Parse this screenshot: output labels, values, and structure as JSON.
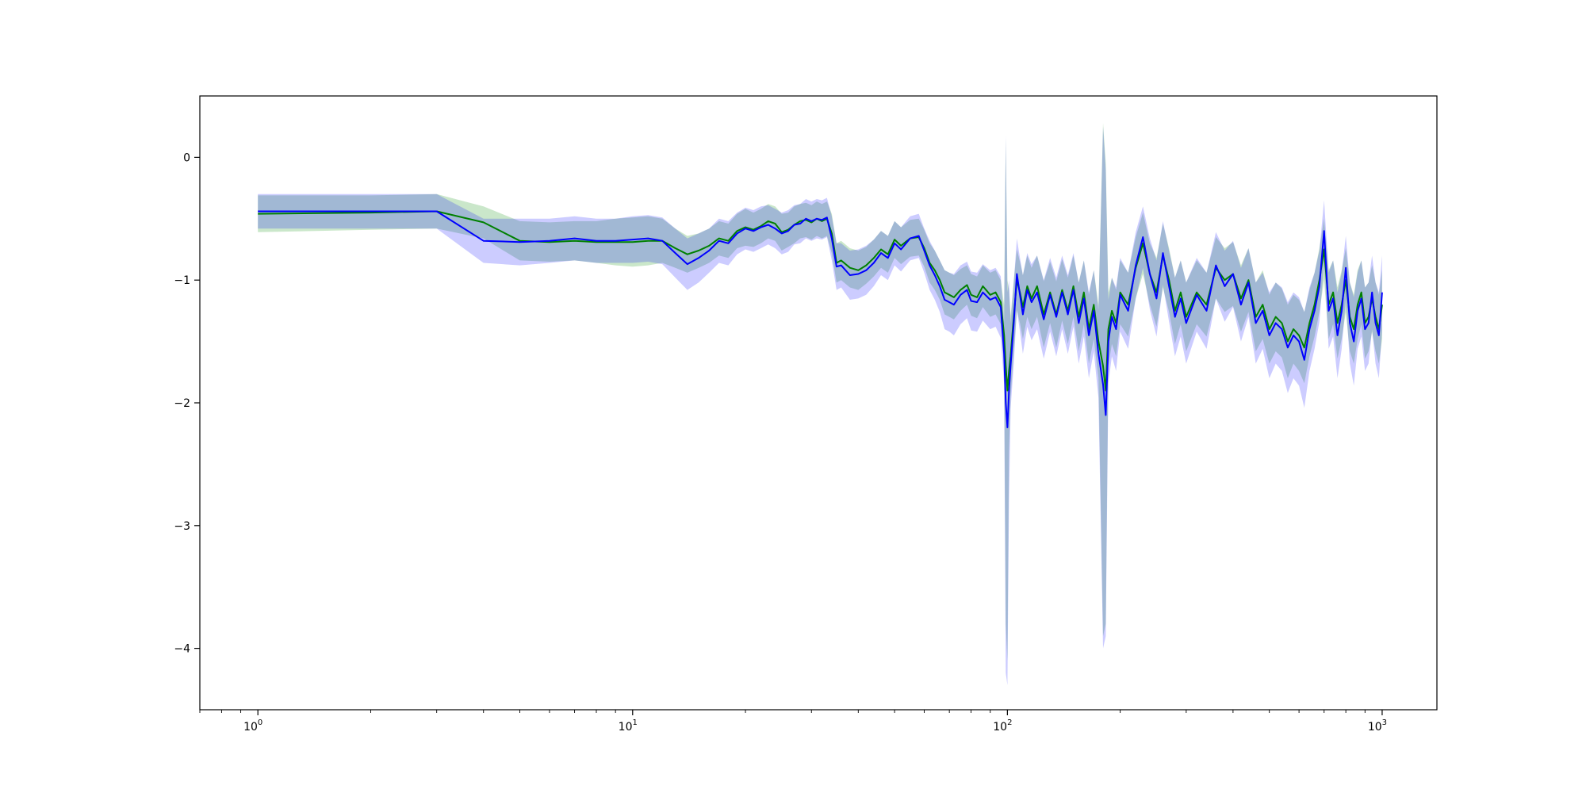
{
  "chart_data": {
    "type": "line",
    "title": "",
    "xlabel": "",
    "ylabel": "",
    "x_scale": "log",
    "xlim": [
      0.7,
      1400
    ],
    "ylim": [
      -4.5,
      0.5
    ],
    "x_ticks": [
      {
        "value": 1,
        "base": "10",
        "exp": "0"
      },
      {
        "value": 10,
        "base": "10",
        "exp": "1"
      },
      {
        "value": 100,
        "base": "10",
        "exp": "2"
      },
      {
        "value": 1000,
        "base": "10",
        "exp": "3"
      }
    ],
    "y_ticks": [
      {
        "value": 0,
        "label": "0"
      },
      {
        "value": -1,
        "label": "−1"
      },
      {
        "value": -2,
        "label": "−2"
      },
      {
        "value": -3,
        "label": "−3"
      },
      {
        "value": -4,
        "label": "−4"
      }
    ],
    "grid": false,
    "legend": "none",
    "series": [
      {
        "color": "#008000",
        "band_color": "#2ca02c",
        "band_opacity": 0.25,
        "x": [
          1,
          2,
          3,
          4,
          5,
          6,
          7,
          8,
          9,
          10,
          11,
          12,
          13,
          14,
          15,
          16,
          17,
          18,
          19,
          20,
          21,
          22,
          23,
          24,
          25,
          26,
          27,
          28,
          29,
          30,
          31,
          32,
          33,
          34,
          35,
          36,
          38,
          40,
          42,
          44,
          46,
          48,
          50,
          52,
          55,
          58,
          60,
          62,
          64,
          66,
          68,
          70,
          72,
          75,
          78,
          80,
          83,
          86,
          90,
          93,
          96,
          98,
          99,
          100,
          101,
          102,
          104,
          106,
          108,
          110,
          113,
          116,
          120,
          125,
          130,
          135,
          140,
          145,
          150,
          155,
          160,
          165,
          170,
          175,
          180,
          183,
          186,
          190,
          195,
          200,
          210,
          220,
          230,
          240,
          250,
          260,
          270,
          280,
          290,
          300,
          320,
          340,
          360,
          380,
          400,
          420,
          440,
          460,
          480,
          500,
          520,
          540,
          560,
          580,
          600,
          620,
          640,
          660,
          680,
          700,
          720,
          740,
          760,
          780,
          800,
          820,
          840,
          860,
          880,
          900,
          920,
          940,
          960,
          980,
          1000
        ],
        "y": [
          -0.46,
          -0.45,
          -0.44,
          -0.53,
          -0.68,
          -0.69,
          -0.68,
          -0.69,
          -0.69,
          -0.69,
          -0.68,
          -0.68,
          -0.74,
          -0.79,
          -0.76,
          -0.72,
          -0.66,
          -0.68,
          -0.6,
          -0.57,
          -0.59,
          -0.56,
          -0.52,
          -0.54,
          -0.61,
          -0.59,
          -0.55,
          -0.52,
          -0.51,
          -0.53,
          -0.5,
          -0.52,
          -0.5,
          -0.62,
          -0.86,
          -0.84,
          -0.9,
          -0.92,
          -0.88,
          -0.82,
          -0.75,
          -0.79,
          -0.67,
          -0.72,
          -0.66,
          -0.65,
          -0.74,
          -0.86,
          -0.92,
          -1.0,
          -1.1,
          -1.12,
          -1.14,
          -1.08,
          -1.04,
          -1.12,
          -1.14,
          -1.05,
          -1.12,
          -1.1,
          -1.18,
          -1.45,
          -1.7,
          -1.9,
          -1.74,
          -1.62,
          -1.3,
          -1.0,
          -1.1,
          -1.22,
          -1.05,
          -1.15,
          -1.05,
          -1.28,
          -1.1,
          -1.28,
          -1.08,
          -1.25,
          -1.05,
          -1.3,
          -1.1,
          -1.4,
          -1.2,
          -1.5,
          -1.7,
          -1.9,
          -1.4,
          -1.25,
          -1.35,
          -1.1,
          -1.2,
          -0.9,
          -0.7,
          -0.95,
          -1.1,
          -0.8,
          -1.0,
          -1.25,
          -1.1,
          -1.3,
          -1.1,
          -1.2,
          -0.9,
          -1.0,
          -0.95,
          -1.15,
          -1.0,
          -1.3,
          -1.2,
          -1.4,
          -1.3,
          -1.35,
          -1.5,
          -1.4,
          -1.45,
          -1.55,
          -1.35,
          -1.2,
          -1.0,
          -0.75,
          -1.2,
          -1.1,
          -1.35,
          -1.2,
          -1.0,
          -1.3,
          -1.4,
          -1.2,
          -1.1,
          -1.35,
          -1.3,
          -1.15,
          -1.3,
          -1.4,
          -1.2
        ],
        "lower": [
          -0.61,
          -0.59,
          -0.58,
          -0.66,
          -0.84,
          -0.85,
          -0.84,
          -0.86,
          -0.88,
          -0.89,
          -0.88,
          -0.86,
          -0.9,
          -0.94,
          -0.9,
          -0.86,
          -0.8,
          -0.82,
          -0.74,
          -0.72,
          -0.73,
          -0.7,
          -0.66,
          -0.68,
          -0.76,
          -0.73,
          -0.7,
          -0.66,
          -0.65,
          -0.67,
          -0.64,
          -0.66,
          -0.64,
          -0.78,
          -1.02,
          -1.0,
          -1.06,
          -1.08,
          -1.03,
          -0.97,
          -0.9,
          -0.94,
          -0.82,
          -0.87,
          -0.81,
          -0.8,
          -0.89,
          -1.02,
          -1.08,
          -1.16,
          -1.28,
          -1.3,
          -1.32,
          -1.25,
          -1.2,
          -1.29,
          -1.31,
          -1.22,
          -1.3,
          -1.28,
          -1.36,
          -1.7,
          -3.8,
          -4.1,
          -2.4,
          -1.95,
          -1.6,
          -1.25,
          -1.35,
          -1.48,
          -1.3,
          -1.4,
          -1.3,
          -1.55,
          -1.35,
          -1.55,
          -1.33,
          -1.52,
          -1.3,
          -1.58,
          -1.36,
          -1.68,
          -1.48,
          -1.8,
          -3.9,
          -3.8,
          -1.7,
          -1.52,
          -1.62,
          -1.36,
          -1.46,
          -1.15,
          -0.95,
          -1.2,
          -1.38,
          -1.06,
          -1.26,
          -1.52,
          -1.36,
          -1.58,
          -1.36,
          -1.46,
          -1.15,
          -1.26,
          -1.21,
          -1.42,
          -1.26,
          -1.58,
          -1.48,
          -1.68,
          -1.58,
          -1.63,
          -1.8,
          -1.68,
          -1.74,
          -1.84,
          -1.62,
          -1.46,
          -1.26,
          -1.0,
          -1.48,
          -1.36,
          -1.64,
          -1.48,
          -1.26,
          -1.58,
          -1.68,
          -1.48,
          -1.36,
          -1.64,
          -1.58,
          -1.42,
          -1.58,
          -1.68,
          -1.48
        ],
        "upper": [
          -0.31,
          -0.31,
          -0.3,
          -0.4,
          -0.52,
          -0.53,
          -0.52,
          -0.52,
          -0.5,
          -0.49,
          -0.48,
          -0.5,
          -0.58,
          -0.64,
          -0.62,
          -0.58,
          -0.52,
          -0.54,
          -0.46,
          -0.42,
          -0.45,
          -0.42,
          -0.38,
          -0.4,
          -0.46,
          -0.45,
          -0.4,
          -0.38,
          -0.37,
          -0.39,
          -0.36,
          -0.38,
          -0.36,
          -0.46,
          -0.7,
          -0.68,
          -0.74,
          -0.76,
          -0.73,
          -0.67,
          -0.6,
          -0.64,
          -0.52,
          -0.57,
          -0.51,
          -0.5,
          -0.59,
          -0.7,
          -0.76,
          -0.84,
          -0.92,
          -0.94,
          -0.96,
          -0.91,
          -0.88,
          -0.95,
          -0.97,
          -0.88,
          -0.94,
          -0.92,
          -1.0,
          -1.2,
          0.15,
          -1.0,
          -1.08,
          -1.29,
          -1.0,
          -0.75,
          -0.85,
          -0.96,
          -0.8,
          -0.9,
          -0.8,
          -1.01,
          -0.85,
          -1.01,
          -0.83,
          -0.98,
          -0.8,
          -1.02,
          -0.84,
          -1.12,
          -0.92,
          -1.2,
          0.28,
          -0.05,
          -1.1,
          -0.98,
          -1.08,
          -0.84,
          -0.94,
          -0.65,
          -0.45,
          -0.7,
          -0.82,
          -0.54,
          -0.74,
          -0.98,
          -0.84,
          -1.02,
          -0.84,
          -0.94,
          -0.65,
          -0.74,
          -0.69,
          -0.88,
          -0.74,
          -1.02,
          -0.92,
          -1.12,
          -1.02,
          -1.07,
          -1.2,
          -1.12,
          -1.16,
          -1.26,
          -1.08,
          -0.94,
          -0.74,
          -0.5,
          -0.92,
          -0.84,
          -1.06,
          -0.92,
          -0.74,
          -1.02,
          -1.12,
          -0.92,
          -0.84,
          -1.06,
          -1.02,
          -0.88,
          -1.02,
          -1.12,
          -0.92
        ]
      },
      {
        "color": "#0000ff",
        "band_color": "#0000ff",
        "band_opacity": 0.2,
        "x": [
          1,
          2,
          3,
          4,
          5,
          6,
          7,
          8,
          9,
          10,
          11,
          12,
          13,
          14,
          15,
          16,
          17,
          18,
          19,
          20,
          21,
          22,
          23,
          24,
          25,
          26,
          27,
          28,
          29,
          30,
          31,
          32,
          33,
          34,
          35,
          36,
          38,
          40,
          42,
          44,
          46,
          48,
          50,
          52,
          55,
          58,
          60,
          62,
          64,
          66,
          68,
          70,
          72,
          75,
          78,
          80,
          83,
          86,
          90,
          93,
          96,
          98,
          99,
          100,
          101,
          102,
          104,
          106,
          108,
          110,
          113,
          116,
          120,
          125,
          130,
          135,
          140,
          145,
          150,
          155,
          160,
          165,
          170,
          175,
          180,
          183,
          186,
          190,
          195,
          200,
          210,
          220,
          230,
          240,
          250,
          260,
          270,
          280,
          290,
          300,
          320,
          340,
          360,
          380,
          400,
          420,
          440,
          460,
          480,
          500,
          520,
          540,
          560,
          580,
          600,
          620,
          640,
          660,
          680,
          700,
          720,
          740,
          760,
          780,
          800,
          820,
          840,
          860,
          880,
          900,
          920,
          940,
          960,
          980,
          1000
        ],
        "y": [
          -0.44,
          -0.44,
          -0.44,
          -0.68,
          -0.69,
          -0.68,
          -0.66,
          -0.68,
          -0.68,
          -0.67,
          -0.66,
          -0.68,
          -0.78,
          -0.87,
          -0.82,
          -0.76,
          -0.68,
          -0.7,
          -0.62,
          -0.58,
          -0.6,
          -0.57,
          -0.55,
          -0.58,
          -0.62,
          -0.6,
          -0.55,
          -0.54,
          -0.5,
          -0.52,
          -0.5,
          -0.51,
          -0.49,
          -0.66,
          -0.89,
          -0.88,
          -0.96,
          -0.95,
          -0.92,
          -0.86,
          -0.78,
          -0.82,
          -0.7,
          -0.75,
          -0.66,
          -0.64,
          -0.76,
          -0.88,
          -0.96,
          -1.05,
          -1.16,
          -1.18,
          -1.2,
          -1.12,
          -1.08,
          -1.17,
          -1.18,
          -1.1,
          -1.16,
          -1.14,
          -1.22,
          -1.6,
          -2.0,
          -2.2,
          -1.9,
          -1.7,
          -1.35,
          -0.95,
          -1.12,
          -1.28,
          -1.08,
          -1.18,
          -1.1,
          -1.32,
          -1.12,
          -1.3,
          -1.1,
          -1.28,
          -1.08,
          -1.35,
          -1.15,
          -1.45,
          -1.25,
          -1.6,
          -1.85,
          -2.1,
          -1.5,
          -1.3,
          -1.4,
          -1.12,
          -1.25,
          -0.88,
          -0.65,
          -0.95,
          -1.15,
          -0.78,
          -1.05,
          -1.3,
          -1.15,
          -1.35,
          -1.12,
          -1.25,
          -0.88,
          -1.05,
          -0.95,
          -1.2,
          -1.02,
          -1.35,
          -1.25,
          -1.45,
          -1.35,
          -1.4,
          -1.55,
          -1.45,
          -1.5,
          -1.65,
          -1.4,
          -1.25,
          -1.05,
          -0.6,
          -1.25,
          -1.15,
          -1.45,
          -1.25,
          -0.9,
          -1.35,
          -1.5,
          -1.25,
          -1.15,
          -1.4,
          -1.35,
          -1.1,
          -1.35,
          -1.45,
          -1.1
        ],
        "lower": [
          -0.58,
          -0.58,
          -0.58,
          -0.86,
          -0.88,
          -0.86,
          -0.84,
          -0.86,
          -0.86,
          -0.86,
          -0.85,
          -0.87,
          -0.98,
          -1.08,
          -1.02,
          -0.94,
          -0.86,
          -0.88,
          -0.79,
          -0.75,
          -0.77,
          -0.74,
          -0.71,
          -0.74,
          -0.79,
          -0.77,
          -0.71,
          -0.7,
          -0.66,
          -0.68,
          -0.66,
          -0.67,
          -0.65,
          -0.84,
          -1.08,
          -1.06,
          -1.16,
          -1.15,
          -1.12,
          -1.05,
          -0.96,
          -1.0,
          -0.88,
          -0.93,
          -0.84,
          -0.82,
          -0.94,
          -1.08,
          -1.16,
          -1.26,
          -1.4,
          -1.42,
          -1.45,
          -1.36,
          -1.31,
          -1.41,
          -1.42,
          -1.33,
          -1.4,
          -1.38,
          -1.47,
          -1.85,
          -4.2,
          -4.3,
          -2.8,
          -2.05,
          -1.68,
          -1.24,
          -1.42,
          -1.6,
          -1.38,
          -1.49,
          -1.4,
          -1.64,
          -1.42,
          -1.62,
          -1.4,
          -1.6,
          -1.38,
          -1.68,
          -1.46,
          -1.8,
          -1.58,
          -1.96,
          -4.0,
          -3.9,
          -1.84,
          -1.62,
          -1.74,
          -1.42,
          -1.56,
          -1.15,
          -0.9,
          -1.24,
          -1.46,
          -1.04,
          -1.34,
          -1.62,
          -1.46,
          -1.68,
          -1.42,
          -1.56,
          -1.15,
          -1.34,
          -1.22,
          -1.5,
          -1.3,
          -1.68,
          -1.56,
          -1.8,
          -1.68,
          -1.74,
          -1.92,
          -1.8,
          -1.86,
          -2.04,
          -1.74,
          -1.56,
          -1.34,
          -0.85,
          -1.56,
          -1.46,
          -1.8,
          -1.56,
          -1.16,
          -1.68,
          -1.86,
          -1.56,
          -1.46,
          -1.74,
          -1.68,
          -1.4,
          -1.68,
          -1.8,
          -1.4
        ],
        "upper": [
          -0.3,
          -0.3,
          -0.3,
          -0.5,
          -0.5,
          -0.5,
          -0.48,
          -0.5,
          -0.5,
          -0.48,
          -0.47,
          -0.49,
          -0.58,
          -0.66,
          -0.62,
          -0.58,
          -0.5,
          -0.52,
          -0.45,
          -0.41,
          -0.43,
          -0.4,
          -0.39,
          -0.42,
          -0.45,
          -0.43,
          -0.39,
          -0.38,
          -0.34,
          -0.36,
          -0.34,
          -0.35,
          -0.33,
          -0.48,
          -0.7,
          -0.7,
          -0.76,
          -0.75,
          -0.72,
          -0.67,
          -0.6,
          -0.64,
          -0.52,
          -0.57,
          -0.48,
          -0.46,
          -0.58,
          -0.68,
          -0.76,
          -0.84,
          -0.92,
          -0.94,
          -0.95,
          -0.88,
          -0.85,
          -0.93,
          -0.94,
          -0.87,
          -0.92,
          -0.9,
          -0.97,
          -1.35,
          0.18,
          -1.1,
          -1.0,
          -1.35,
          -1.02,
          -0.66,
          -0.82,
          -0.96,
          -0.78,
          -0.87,
          -0.8,
          -1.0,
          -0.82,
          -0.98,
          -0.8,
          -0.96,
          -0.78,
          -1.02,
          -0.84,
          -1.1,
          -0.92,
          -1.24,
          0.25,
          -0.1,
          -1.16,
          -0.98,
          -1.06,
          -0.82,
          -0.94,
          -0.61,
          -0.4,
          -0.66,
          -0.84,
          -0.52,
          -0.76,
          -0.98,
          -0.84,
          -1.02,
          -0.82,
          -0.94,
          -0.61,
          -0.76,
          -0.68,
          -0.9,
          -0.74,
          -1.02,
          -0.94,
          -1.1,
          -1.02,
          -1.06,
          -1.18,
          -1.1,
          -1.14,
          -1.26,
          -1.06,
          -0.94,
          -0.76,
          -0.35,
          -0.94,
          -0.84,
          -1.1,
          -0.94,
          -0.64,
          -1.02,
          -1.14,
          -0.94,
          -0.84,
          -1.06,
          -1.02,
          -0.8,
          -1.02,
          -1.1,
          -0.8
        ]
      }
    ]
  }
}
